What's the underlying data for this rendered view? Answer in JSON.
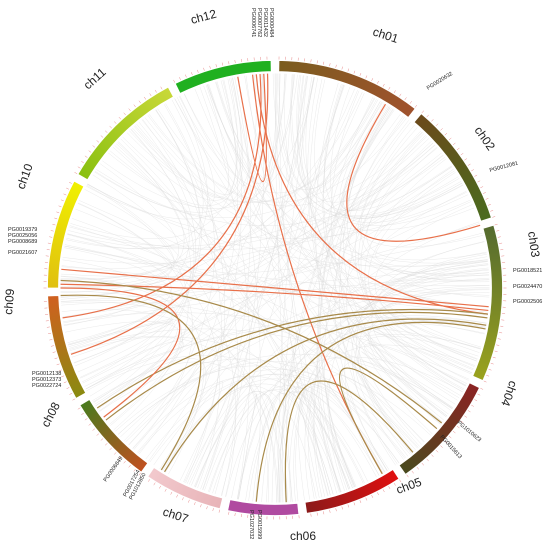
{
  "figure": {
    "type": "circos-synteny",
    "chromosomes": [
      {
        "name": "ch01",
        "color_start": "#7a5c1e",
        "color_end": "#a0522d"
      },
      {
        "name": "ch02",
        "color_start": "#6b4a1b",
        "color_end": "#4a6b1e"
      },
      {
        "name": "ch03",
        "color_start": "#556b2f",
        "color_end": "#9aa21e"
      },
      {
        "name": "ch04",
        "color_start": "#8b2323",
        "color_end": "#4a4a1e"
      },
      {
        "name": "ch05",
        "color_start": "#e01010",
        "color_end": "#8b1a1a"
      },
      {
        "name": "ch06",
        "color_start": "#b04aa0",
        "color_end": "#b04aa0"
      },
      {
        "name": "ch07",
        "color_start": "#e8b4b8",
        "color_end": "#f2c9cd"
      },
      {
        "name": "ch08",
        "color_start": "#c05020",
        "color_end": "#4a7a1e"
      },
      {
        "name": "ch09",
        "color_start": "#8a8a10",
        "color_end": "#d06020"
      },
      {
        "name": "ch10",
        "color_start": "#e0c010",
        "color_end": "#f0f000"
      },
      {
        "name": "ch11",
        "color_start": "#8ac010",
        "color_end": "#c8d838"
      },
      {
        "name": "ch12",
        "color_start": "#20b020",
        "color_end": "#20b020"
      }
    ],
    "gene_labels": [
      {
        "text": "PG0000484",
        "chr": "ch12"
      },
      {
        "text": "PG0011432",
        "chr": "ch12"
      },
      {
        "text": "PG0007762",
        "chr": "ch12"
      },
      {
        "text": "PG0006741",
        "chr": "ch12"
      },
      {
        "text": "PG0020632",
        "chr": "ch01"
      },
      {
        "text": "PG0012081",
        "chr": "ch02"
      },
      {
        "text": "PG0018521",
        "chr": "ch03"
      },
      {
        "text": "PG0024470",
        "chr": "ch03"
      },
      {
        "text": "PG0002506",
        "chr": "ch03"
      },
      {
        "text": "PG1010623",
        "chr": "ch04"
      },
      {
        "text": "PG0015613",
        "chr": "ch05"
      },
      {
        "text": "PG1027032",
        "chr": "ch06"
      },
      {
        "text": "PG0015999",
        "chr": "ch06"
      },
      {
        "text": "PG0017254",
        "chr": "ch07"
      },
      {
        "text": "PG1012850",
        "chr": "ch07"
      },
      {
        "text": "PG0006849",
        "chr": "ch07"
      },
      {
        "text": "PG0012138",
        "chr": "ch08"
      },
      {
        "text": "PG0012373",
        "chr": "ch08"
      },
      {
        "text": "PG0022724",
        "chr": "ch08"
      },
      {
        "text": "PG0021607",
        "chr": "ch10"
      },
      {
        "text": "PG0008689",
        "chr": "ch10"
      },
      {
        "text": "PG0025056",
        "chr": "ch10"
      },
      {
        "text": "PG0019379",
        "chr": "ch10"
      }
    ],
    "links_colors": {
      "red": "#e8704a",
      "olive": "#a88a4a",
      "background": "#d9d9d9"
    }
  }
}
